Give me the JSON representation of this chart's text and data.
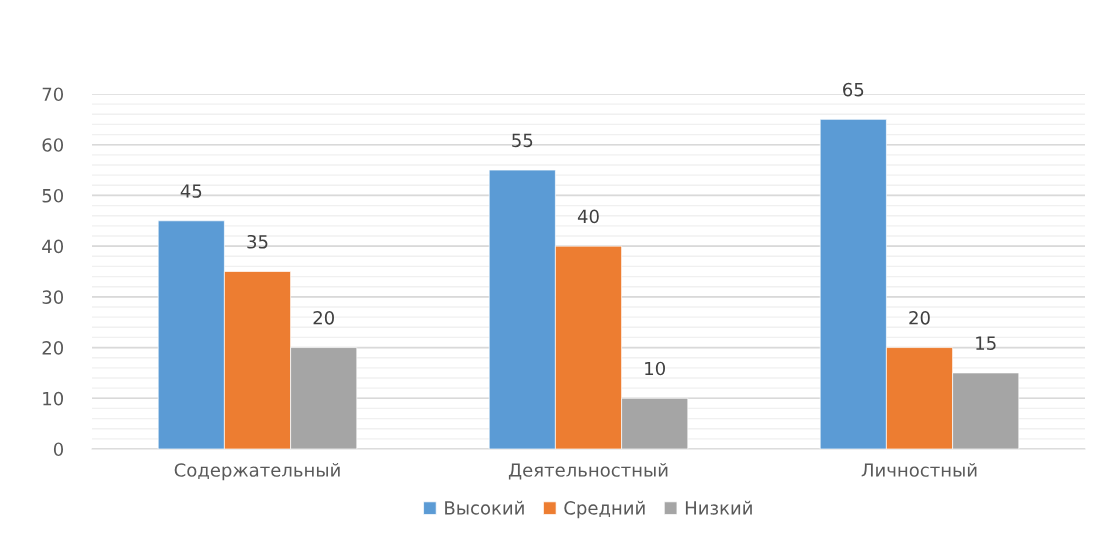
{
  "chart_data": {
    "type": "bar",
    "categories": [
      "Содержательный",
      "Деятельностный",
      "Личностный"
    ],
    "series": [
      {
        "name": "Высокий",
        "color": "#5b9bd5",
        "values": [
          45,
          55,
          65
        ]
      },
      {
        "name": "Средний",
        "color": "#ed7d31",
        "values": [
          35,
          40,
          20
        ]
      },
      {
        "name": "Низкий",
        "color": "#a5a5a5",
        "values": [
          20,
          10,
          15
        ]
      }
    ],
    "ylim": [
      0,
      70
    ],
    "yticks": [
      0,
      10,
      20,
      30,
      40,
      50,
      60,
      70
    ],
    "grid": "y",
    "legend": "bottom",
    "data_labels": true
  }
}
